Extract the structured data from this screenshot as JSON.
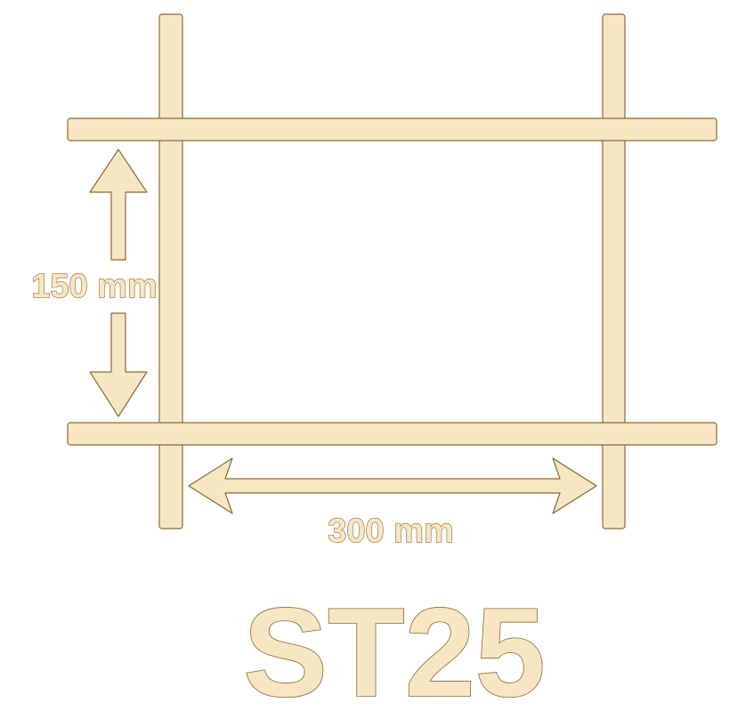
{
  "diagram": {
    "height_label": "150 mm",
    "width_label": "300 mm",
    "product_code": "ST25",
    "colors": {
      "wire_fill": "#f7e6c3",
      "outline": "#8a6a32"
    }
  }
}
